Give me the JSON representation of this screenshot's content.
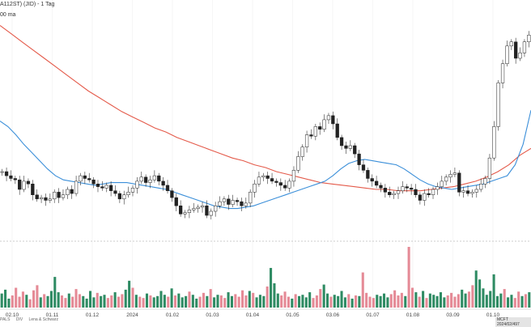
{
  "header": {
    "title": "A112ST) (JID) - 1 Tag",
    "legend": "00 ma"
  },
  "footer": {
    "items": [
      "PALS",
      "DIV",
      "Lena & Schwarz"
    ],
    "badge": "MCFT 2024/02/497"
  },
  "colors": {
    "up": "#26a269",
    "down": "#e35b6b",
    "ma_fast": "#3b8fd9",
    "ma_slow": "#e45a4a",
    "vol_up": "#2e8b63",
    "vol_down": "#e58a96"
  },
  "chart_data": {
    "type": "line",
    "x_tick_labels": [
      "02.10",
      "01.11",
      "01.12",
      "2024",
      "01.02",
      "01.03",
      "01.04",
      "01.05",
      "03.06",
      "01.07",
      "01.08",
      "03.09",
      "01.10"
    ],
    "series": [
      {
        "role": "price (candles)",
        "values": [
          195,
          192,
          190,
          189,
          182,
          188,
          186,
          178,
          175,
          176,
          174,
          175,
          180,
          176,
          178,
          182,
          179,
          188,
          192,
          190,
          189,
          186,
          184,
          183,
          185,
          181,
          179,
          175,
          178,
          180,
          183,
          188,
          191,
          187,
          189,
          192,
          188,
          185,
          181,
          176,
          170,
          164,
          165,
          167,
          168,
          169,
          170,
          163,
          166,
          170,
          173,
          175,
          171,
          174,
          173,
          170,
          172,
          180,
          186,
          191,
          192,
          190,
          188,
          187,
          185,
          183,
          188,
          196,
          206,
          213,
          222,
          221,
          228,
          226,
          233,
          236,
          230,
          220,
          214,
          212,
          214,
          208,
          200,
          196,
          190,
          188,
          185,
          183,
          180,
          178,
          179,
          181,
          184,
          183,
          182,
          178,
          174,
          179,
          178,
          182,
          184,
          188,
          191,
          193,
          194,
          180,
          181,
          179,
          180,
          182,
          186,
          190,
          205,
          228,
          260,
          274,
          287,
          290,
          278,
          282,
          290,
          295
        ]
      },
      {
        "role": "moving average (blue)",
        "values": [
          232,
          228,
          222,
          215,
          209,
          203,
          197,
          192,
          189,
          188,
          187,
          186,
          185,
          186,
          187,
          187,
          187,
          186,
          185,
          184,
          183,
          182,
          180,
          178,
          176,
          174,
          172,
          170,
          169,
          168,
          168,
          169,
          170,
          172,
          174,
          176,
          178,
          180,
          182,
          184,
          186,
          188,
          192,
          197,
          201,
          203,
          204,
          203,
          202,
          201,
          200,
          197,
          193,
          189,
          186,
          184,
          183,
          182,
          183,
          184,
          185,
          186,
          188,
          190,
          192,
          200,
          215,
          240
        ]
      },
      {
        "role": "moving average (red)",
        "values": [
          302,
          296,
          290,
          284,
          278,
          272,
          266,
          260,
          254,
          249,
          244,
          239,
          235,
          231,
          227,
          224,
          220,
          217,
          214,
          211,
          208,
          205,
          203,
          200,
          198,
          195,
          193,
          191,
          189,
          187,
          186,
          185,
          184,
          183,
          182,
          182,
          181,
          181,
          181,
          182,
          183,
          184,
          186,
          188,
          191,
          195,
          200,
          207,
          212
        ]
      },
      {
        "role": "volume",
        "values": [
          22,
          28,
          14,
          19,
          31,
          17,
          25,
          20,
          13,
          27,
          35,
          16,
          21,
          18,
          26,
          48,
          24,
          19,
          15,
          22,
          17,
          29,
          21,
          18,
          14,
          26,
          16,
          23,
          18,
          20,
          15,
          19,
          24,
          17,
          21,
          28,
          42,
          31,
          20,
          17,
          15,
          22,
          19,
          16,
          18,
          26,
          20,
          17,
          30,
          19,
          22,
          16,
          18,
          25,
          20,
          14,
          17,
          23,
          18,
          29,
          16,
          20,
          19,
          15,
          24,
          18,
          21,
          17,
          27,
          19,
          26,
          23,
          16,
          20,
          18,
          33,
          62,
          38,
          22,
          19,
          25,
          17,
          14,
          21,
          18,
          20,
          16,
          24,
          15,
          19,
          29,
          36,
          22,
          17,
          20,
          18,
          26,
          16,
          21,
          14,
          19,
          18,
          55,
          23,
          17,
          15,
          20,
          18,
          22,
          16,
          21,
          27,
          19,
          23,
          18,
          95,
          31,
          24,
          17,
          26,
          15,
          22,
          20,
          18,
          24,
          16,
          19,
          23,
          17,
          21,
          28,
          22,
          25,
          35,
          58,
          44,
          30,
          20,
          26,
          52,
          18,
          22,
          29,
          16,
          20,
          15,
          25,
          18,
          21,
          24
        ]
      }
    ],
    "grid": true,
    "legend_position": "top-left"
  }
}
